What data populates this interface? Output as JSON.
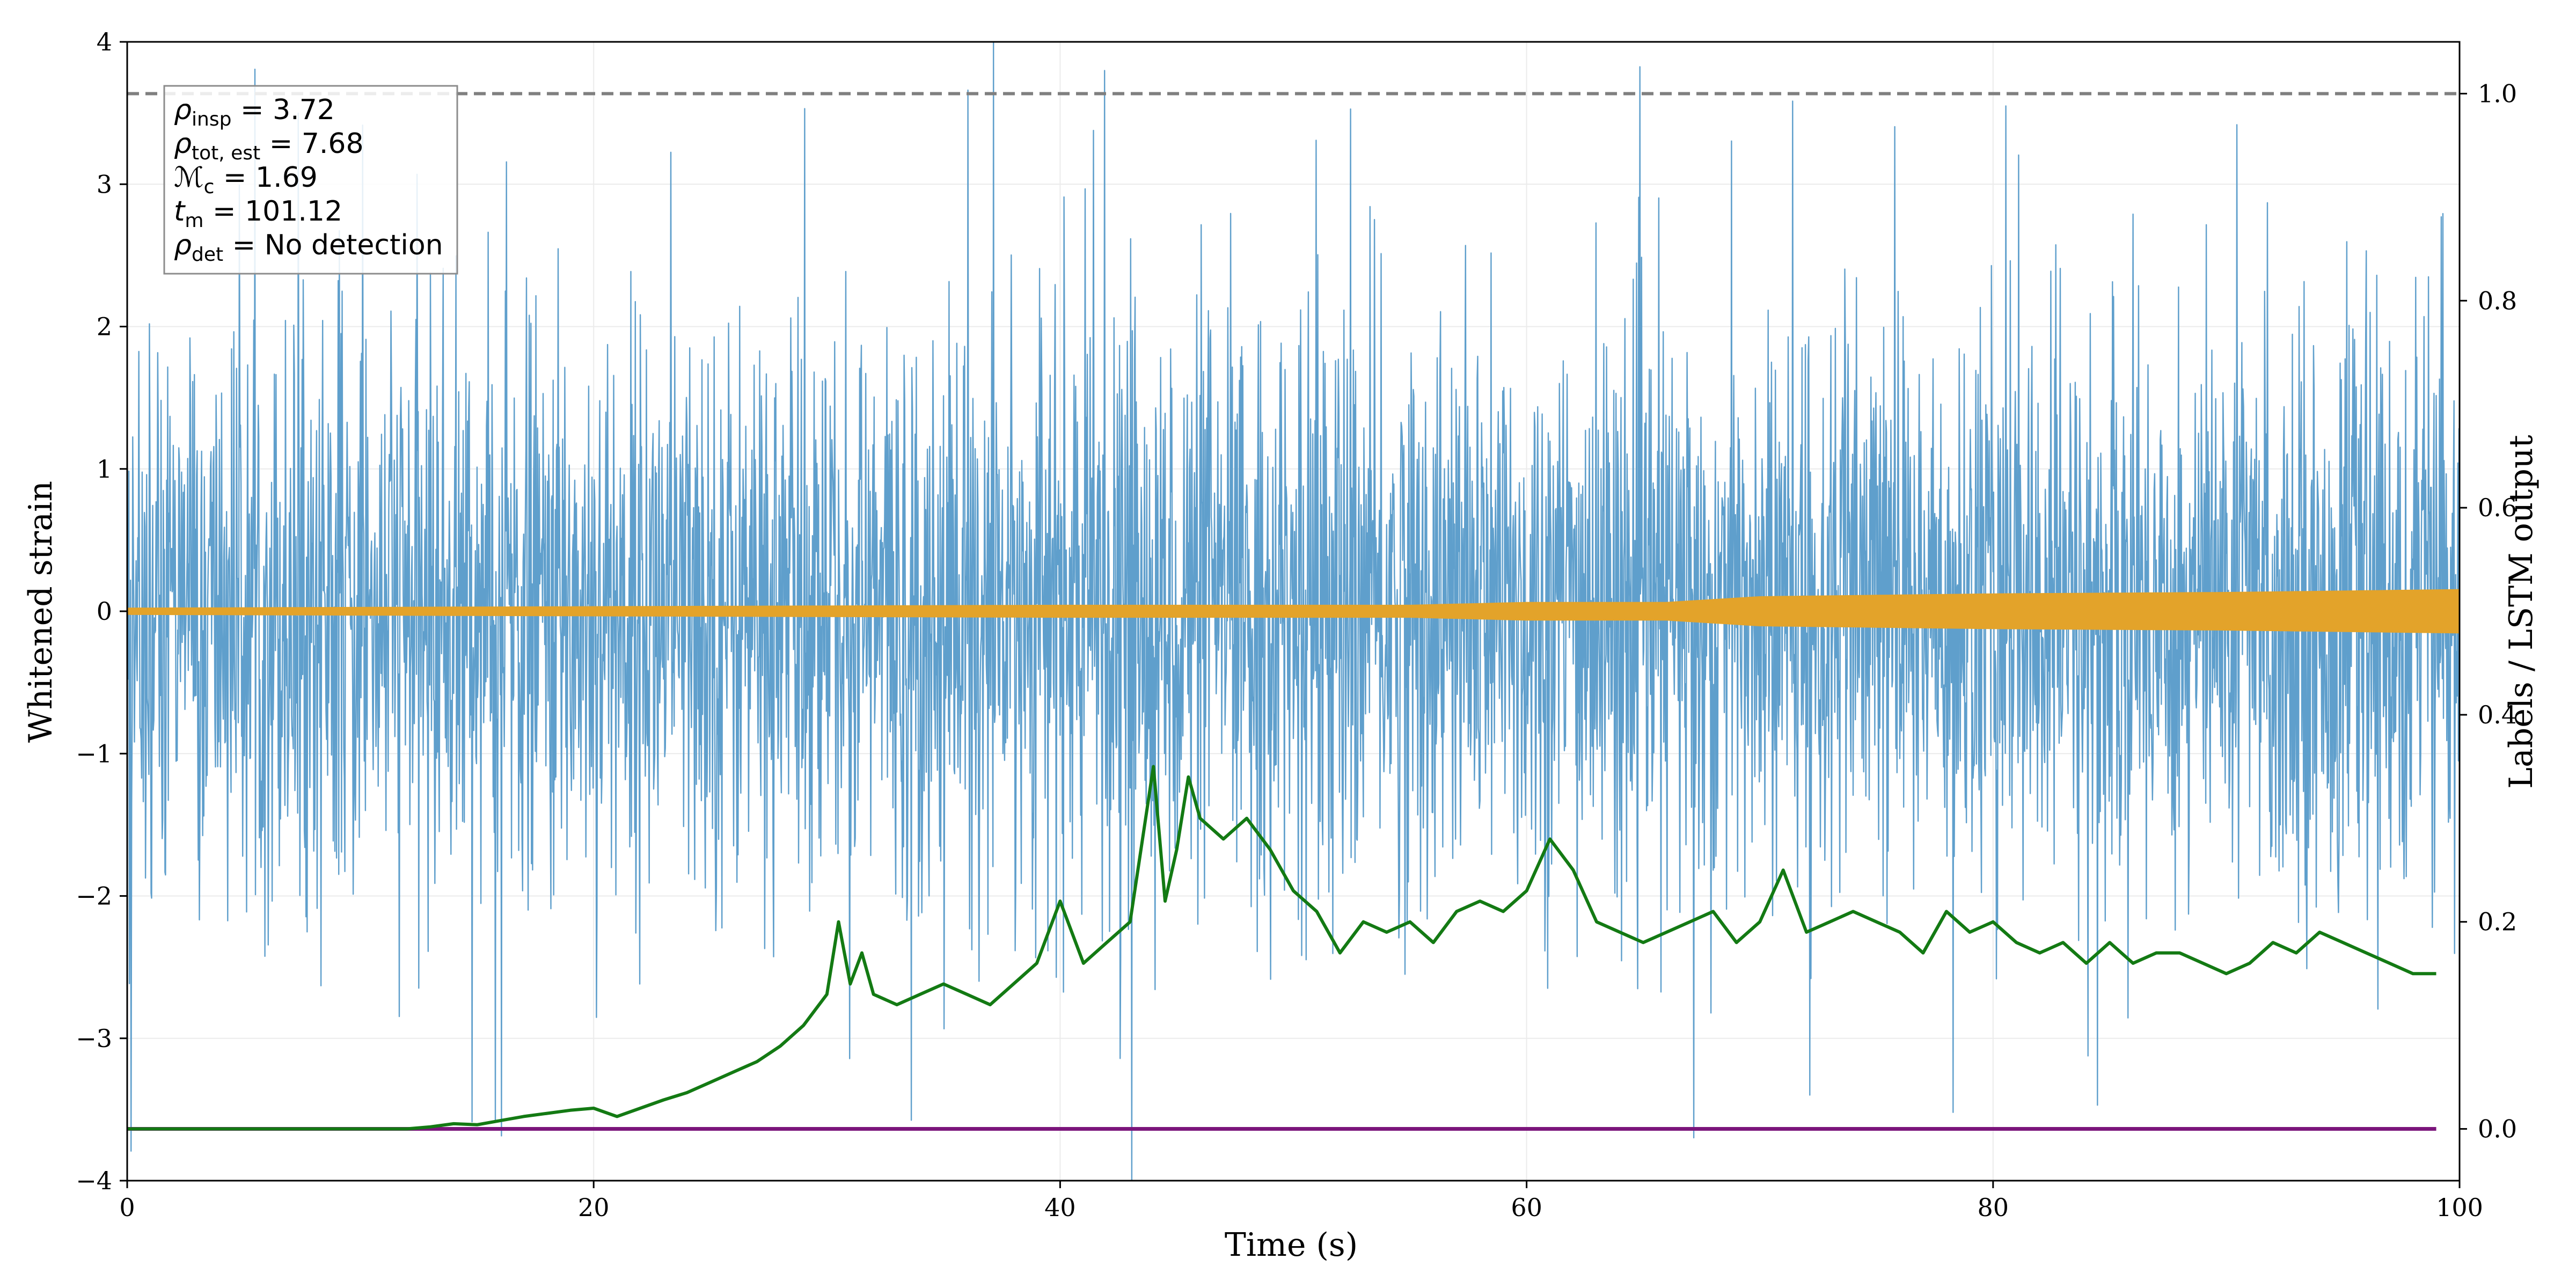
{
  "chart_data": {
    "type": "line",
    "xlabel": "Time (s)",
    "ylabel": "Whitened strain",
    "y2label": "Labels / LSTM output",
    "xlim": [
      0,
      100
    ],
    "ylim": [
      -4,
      4
    ],
    "y2lim": [
      -0.05,
      1.05
    ],
    "x_ticks": [
      "0",
      "20",
      "40",
      "60",
      "80",
      "100"
    ],
    "y_ticks": [
      "−4",
      "−3",
      "−2",
      "−1",
      "0",
      "1",
      "2",
      "3",
      "4"
    ],
    "y2_ticks": [
      "0.0",
      "0.2",
      "0.4",
      "0.6",
      "0.8",
      "1.0"
    ],
    "grid": true,
    "threshold": 1.0,
    "colors": {
      "strain": "#5f9fcc",
      "signal": "#e3a32a",
      "lstm": "#137a13",
      "labels": "#7b157b",
      "threshold": "#7f7f7f"
    },
    "annotation_box": {
      "placement": "top-left",
      "lines": [
        {
          "sym": "ρ",
          "sub": "insp",
          "value": "= 3.72"
        },
        {
          "sym": "ρ",
          "sub": "tot, est",
          "value": "= 7.68"
        },
        {
          "sym": "ℳ",
          "sub": "c",
          "value": "= 1.69"
        },
        {
          "sym": "t",
          "sub": "m",
          "value": "= 101.12"
        },
        {
          "sym": "ρ",
          "sub": "det",
          "value": "= No detection"
        }
      ]
    },
    "series": [
      {
        "name": "",
        "role": "strain",
        "axis": "left",
        "description_range": [
          -4,
          4
        ],
        "x_range": [
          0,
          100
        ]
      },
      {
        "name": "",
        "role": "signal",
        "axis": "left",
        "envelope_x": [
          0,
          20,
          40,
          55,
          60,
          66,
          70,
          80,
          90,
          100
        ],
        "envelope_amp": [
          0.02,
          0.03,
          0.04,
          0.04,
          0.06,
          0.06,
          0.1,
          0.12,
          0.13,
          0.15
        ]
      },
      {
        "name": "",
        "role": "lstm",
        "axis": "right",
        "x": [
          0,
          12,
          13,
          14,
          15,
          16,
          17,
          18,
          19,
          20,
          21,
          22,
          23,
          24,
          25,
          26,
          27,
          28,
          29,
          30,
          30.5,
          31,
          31.5,
          32,
          33,
          34,
          35,
          36,
          37,
          38,
          39,
          40,
          41,
          42,
          43,
          44,
          44.5,
          45,
          45.5,
          46,
          47,
          48,
          49,
          50,
          51,
          52,
          53,
          54,
          55,
          56,
          57,
          58,
          59,
          60,
          61,
          62,
          63,
          64,
          65,
          66,
          67,
          68,
          69,
          70,
          71,
          72,
          73,
          74,
          75,
          76,
          77,
          78,
          79,
          80,
          81,
          82,
          83,
          84,
          85,
          86,
          87,
          88,
          89,
          90,
          91,
          92,
          93,
          94,
          95,
          96,
          97,
          98,
          99
        ],
        "y": [
          0.0,
          0.0,
          0.002,
          0.005,
          0.004,
          0.008,
          0.012,
          0.015,
          0.018,
          0.02,
          0.012,
          0.02,
          0.028,
          0.035,
          0.045,
          0.055,
          0.065,
          0.08,
          0.1,
          0.13,
          0.2,
          0.14,
          0.17,
          0.13,
          0.12,
          0.13,
          0.14,
          0.13,
          0.12,
          0.14,
          0.16,
          0.22,
          0.16,
          0.18,
          0.2,
          0.35,
          0.22,
          0.27,
          0.34,
          0.3,
          0.28,
          0.3,
          0.27,
          0.23,
          0.21,
          0.17,
          0.2,
          0.19,
          0.2,
          0.18,
          0.21,
          0.22,
          0.21,
          0.23,
          0.28,
          0.25,
          0.2,
          0.19,
          0.18,
          0.19,
          0.2,
          0.21,
          0.18,
          0.2,
          0.25,
          0.19,
          0.2,
          0.21,
          0.2,
          0.19,
          0.17,
          0.21,
          0.19,
          0.2,
          0.18,
          0.17,
          0.18,
          0.16,
          0.18,
          0.16,
          0.17,
          0.17,
          0.16,
          0.15,
          0.16,
          0.18,
          0.17,
          0.19,
          0.18,
          0.17,
          0.16,
          0.15,
          0.15
        ]
      },
      {
        "name": "",
        "role": "labels",
        "axis": "right",
        "x": [
          0,
          99
        ],
        "y": [
          0.0,
          0.0
        ]
      }
    ]
  }
}
